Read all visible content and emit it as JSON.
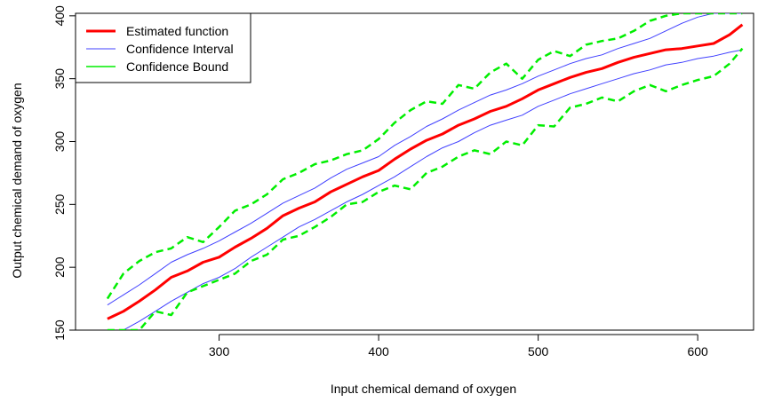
{
  "chart_data": {
    "type": "line",
    "xlabel": "Input chemical demand of oxygen",
    "ylabel": "Output chemical demand of oxygen",
    "xlim": [
      210,
      635
    ],
    "ylim": [
      150,
      402
    ],
    "x_ticks": [
      300,
      400,
      500,
      600
    ],
    "y_ticks": [
      150,
      200,
      250,
      300,
      350,
      400
    ],
    "legend_position": "top-left",
    "grid": false,
    "x": [
      230,
      240,
      250,
      260,
      270,
      280,
      290,
      300,
      310,
      320,
      330,
      340,
      350,
      360,
      370,
      380,
      390,
      400,
      410,
      420,
      430,
      440,
      450,
      460,
      470,
      480,
      490,
      500,
      510,
      520,
      530,
      540,
      550,
      560,
      570,
      580,
      590,
      600,
      610,
      620,
      628
    ],
    "series": [
      {
        "name": "Estimated function",
        "color": "#ff0000",
        "dash": "solid",
        "width": 3,
        "values": [
          159,
          165,
          173,
          182,
          192,
          197,
          204,
          208,
          216,
          223,
          231,
          241,
          247,
          252,
          260,
          266,
          272,
          277,
          286,
          294,
          301,
          306,
          313,
          318,
          324,
          328,
          334,
          341,
          346,
          351,
          355,
          358,
          363,
          367,
          370,
          373,
          374,
          376,
          378,
          385,
          393
        ]
      },
      {
        "name": "Confidence Interval",
        "color": "#4040ff",
        "dash": "solid",
        "width": 1,
        "values": [
          170,
          178,
          186,
          195,
          204,
          210,
          215,
          221,
          228,
          235,
          243,
          251,
          257,
          263,
          271,
          278,
          283,
          288,
          297,
          304,
          312,
          318,
          325,
          331,
          337,
          341,
          346,
          352,
          357,
          362,
          366,
          369,
          374,
          378,
          382,
          388,
          394,
          399,
          402,
          402,
          402
        ]
      },
      {
        "name": "Confidence Interval",
        "color": "#4040ff",
        "dash": "solid",
        "width": 1,
        "values": [
          145,
          150,
          157,
          165,
          173,
          180,
          187,
          192,
          199,
          208,
          216,
          224,
          232,
          238,
          245,
          252,
          258,
          265,
          272,
          280,
          288,
          295,
          300,
          307,
          313,
          317,
          321,
          328,
          333,
          338,
          342,
          346,
          350,
          354,
          357,
          361,
          363,
          366,
          368,
          371,
          373
        ]
      },
      {
        "name": "Confidence Bound",
        "color": "#00ee00",
        "dash": "8,5",
        "width": 2.5,
        "values": [
          175,
          195,
          205,
          212,
          215,
          224,
          220,
          232,
          245,
          250,
          258,
          270,
          275,
          282,
          285,
          290,
          293,
          302,
          315,
          325,
          332,
          330,
          345,
          342,
          355,
          362,
          350,
          365,
          372,
          368,
          377,
          380,
          382,
          388,
          396,
          400,
          402,
          402,
          402,
          402,
          402
        ]
      },
      {
        "name": "Confidence Bound",
        "color": "#00ee00",
        "dash": "8,5",
        "width": 2.5,
        "values": [
          150,
          150,
          150,
          165,
          162,
          180,
          185,
          190,
          195,
          205,
          210,
          222,
          225,
          232,
          240,
          250,
          252,
          260,
          265,
          262,
          275,
          280,
          288,
          293,
          290,
          300,
          297,
          313,
          312,
          327,
          330,
          335,
          332,
          340,
          345,
          340,
          345,
          349,
          352,
          362,
          374
        ]
      }
    ],
    "legend": [
      {
        "label": "Estimated function",
        "color": "#ff0000",
        "width": 3
      },
      {
        "label": "Confidence Interval",
        "color": "#4040ff",
        "width": 1
      },
      {
        "label": "Confidence Bound",
        "color": "#00ee00",
        "width": 1.5
      }
    ]
  }
}
